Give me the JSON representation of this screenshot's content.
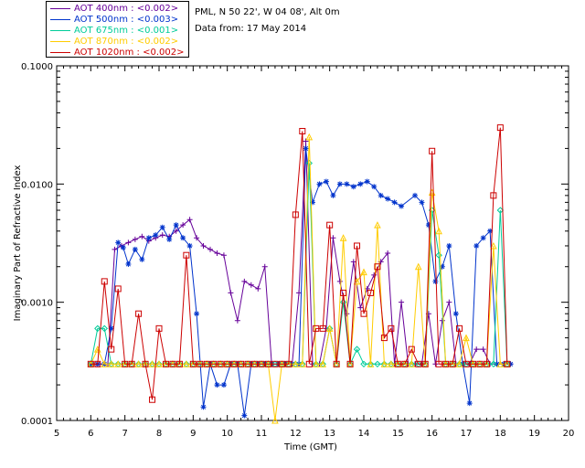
{
  "header": {
    "location": "PML, N 50 22', W 04 08', Alt 0m",
    "date_line": "Data from: 17 May 2014"
  },
  "chart_data": {
    "type": "line",
    "title": "",
    "xlabel": "Time (GMT)",
    "ylabel": "Imaginary Part of Refractive Index",
    "xlim": [
      5,
      20
    ],
    "ylim": [
      0.0001,
      0.1
    ],
    "yscale": "log",
    "xticks": [
      "5",
      "6",
      "7",
      "8",
      "9",
      "10",
      "11",
      "12",
      "13",
      "14",
      "15",
      "16",
      "17",
      "18",
      "19",
      "20"
    ],
    "yticks": [
      "0.0001",
      "0.0010",
      "0.0100",
      "0.1000"
    ],
    "series": [
      {
        "name": "AOT 400nm : <0.002>",
        "color": "#660099",
        "marker": "plus",
        "x": [
          6.0,
          6.2,
          6.5,
          6.7,
          6.9,
          7.1,
          7.3,
          7.5,
          7.7,
          7.9,
          8.1,
          8.3,
          8.5,
          8.7,
          8.9,
          9.1,
          9.3,
          9.5,
          9.7,
          9.9,
          10.1,
          10.3,
          10.5,
          10.7,
          10.9,
          11.1,
          11.3,
          11.5,
          11.7,
          11.9,
          12.1,
          12.3,
          12.5,
          12.7,
          12.9,
          13.1,
          13.3,
          13.5,
          13.7,
          13.9,
          14.1,
          14.3,
          14.5,
          14.7,
          14.9,
          15.1,
          15.3,
          15.5,
          15.7,
          15.9,
          16.1,
          16.3,
          16.5,
          16.7,
          16.9,
          17.1,
          17.3,
          17.5,
          17.7,
          17.9,
          18.1,
          18.3
        ],
        "y": [
          0.0003,
          0.0003,
          0.0003,
          0.0028,
          0.003,
          0.0032,
          0.0034,
          0.0036,
          0.0033,
          0.0035,
          0.0037,
          0.0036,
          0.004,
          0.0045,
          0.005,
          0.0035,
          0.003,
          0.0028,
          0.0026,
          0.0025,
          0.0012,
          0.0007,
          0.0015,
          0.0014,
          0.0013,
          0.002,
          0.0003,
          0.0003,
          0.0003,
          0.0003,
          0.0012,
          0.023,
          0.0003,
          0.0003,
          0.0006,
          0.0035,
          0.0015,
          0.0008,
          0.0022,
          0.0009,
          0.0013,
          0.0017,
          0.0022,
          0.0026,
          0.0003,
          0.001,
          0.0003,
          0.0003,
          0.0003,
          0.0008,
          0.0003,
          0.0007,
          0.001,
          0.0003,
          0.0003,
          0.0003,
          0.0004,
          0.0004,
          0.0003,
          0.0003,
          0.0003,
          0.0003
        ]
      },
      {
        "name": "AOT 500nm : <0.003>",
        "color": "#0033cc",
        "marker": "star",
        "x": [
          6.0,
          6.2,
          6.4,
          6.6,
          6.8,
          6.95,
          7.1,
          7.3,
          7.5,
          7.7,
          7.9,
          8.1,
          8.3,
          8.5,
          8.7,
          8.9,
          9.1,
          9.3,
          9.5,
          9.7,
          9.9,
          10.1,
          10.3,
          10.5,
          10.7,
          10.9,
          11.1,
          11.3,
          11.5,
          11.7,
          11.9,
          12.1,
          12.3,
          12.5,
          12.7,
          12.9,
          13.1,
          13.3,
          13.5,
          13.7,
          13.9,
          14.1,
          14.3,
          14.5,
          14.7,
          14.9,
          15.1,
          15.5,
          15.7,
          15.9,
          16.1,
          16.3,
          16.5,
          16.7,
          16.9,
          17.1,
          17.3,
          17.5,
          17.7,
          17.9,
          18.1,
          18.3
        ],
        "y": [
          0.0003,
          0.0003,
          0.0003,
          0.0006,
          0.0032,
          0.0029,
          0.0021,
          0.0028,
          0.0023,
          0.0035,
          0.0037,
          0.0043,
          0.0034,
          0.0045,
          0.0035,
          0.003,
          0.0008,
          0.00013,
          0.0003,
          0.0002,
          0.0002,
          0.0003,
          0.0003,
          0.00011,
          0.0003,
          0.0003,
          0.0003,
          0.0003,
          0.0003,
          0.0003,
          0.0003,
          0.0003,
          0.02,
          0.007,
          0.01,
          0.0105,
          0.008,
          0.01,
          0.01,
          0.0095,
          0.01,
          0.0105,
          0.0095,
          0.008,
          0.0075,
          0.007,
          0.0065,
          0.008,
          0.007,
          0.0045,
          0.0015,
          0.002,
          0.003,
          0.0008,
          0.0003,
          0.00014,
          0.003,
          0.0035,
          0.004,
          0.0003,
          0.0003,
          0.0003
        ]
      },
      {
        "name": "AOT 675nm : <0.001>",
        "color": "#00cc99",
        "marker": "diamond",
        "x": [
          6.0,
          6.2,
          6.4,
          6.6,
          6.8,
          7.0,
          7.2,
          7.4,
          7.6,
          7.8,
          8.0,
          8.2,
          8.4,
          8.6,
          8.8,
          9.0,
          9.2,
          9.4,
          9.6,
          9.8,
          10.0,
          10.2,
          10.4,
          10.6,
          10.8,
          11.0,
          11.2,
          11.4,
          11.6,
          11.8,
          12.0,
          12.2,
          12.4,
          12.6,
          12.8,
          13.0,
          13.2,
          13.4,
          13.6,
          13.8,
          14.0,
          14.2,
          14.4,
          14.6,
          14.8,
          15.0,
          15.2,
          15.4,
          15.6,
          15.8,
          16.0,
          16.2,
          16.4,
          16.6,
          16.8,
          17.0,
          17.2,
          17.4,
          17.6,
          17.8,
          18.0,
          18.2
        ],
        "y": [
          0.0003,
          0.0006,
          0.0006,
          0.0003,
          0.0003,
          0.0003,
          0.0003,
          0.0003,
          0.0003,
          0.0003,
          0.0003,
          0.0003,
          0.0003,
          0.0003,
          0.0003,
          0.0003,
          0.0003,
          0.0003,
          0.0003,
          0.0003,
          0.0003,
          0.0003,
          0.0003,
          0.0003,
          0.0003,
          0.0003,
          0.0003,
          0.0003,
          0.0003,
          0.0003,
          0.0003,
          0.0003,
          0.015,
          0.0003,
          0.0003,
          0.0006,
          0.0003,
          0.001,
          0.0003,
          0.0004,
          0.0003,
          0.0003,
          0.0003,
          0.0003,
          0.0003,
          0.0003,
          0.0003,
          0.0003,
          0.0003,
          0.0003,
          0.006,
          0.0025,
          0.0003,
          0.0003,
          0.0003,
          0.0003,
          0.0003,
          0.0003,
          0.0003,
          0.0003,
          0.006,
          0.0003
        ]
      },
      {
        "name": "AOT 870nm : <0.002>",
        "color": "#ffcc00",
        "marker": "triangle",
        "x": [
          6.0,
          6.2,
          6.4,
          6.6,
          6.8,
          7.0,
          7.2,
          7.4,
          7.6,
          7.8,
          8.0,
          8.2,
          8.4,
          8.6,
          8.8,
          9.0,
          9.2,
          9.4,
          9.6,
          9.8,
          10.0,
          10.2,
          10.4,
          10.6,
          10.8,
          11.0,
          11.2,
          11.4,
          11.6,
          11.8,
          12.0,
          12.2,
          12.4,
          12.6,
          12.8,
          13.0,
          13.2,
          13.4,
          13.6,
          13.8,
          14.0,
          14.2,
          14.4,
          14.6,
          14.8,
          15.0,
          15.2,
          15.4,
          15.6,
          15.8,
          16.0,
          16.2,
          16.4,
          16.6,
          16.8,
          17.0,
          17.2,
          17.4,
          17.6,
          17.8,
          18.0,
          18.2
        ],
        "y": [
          0.0003,
          0.0004,
          0.0003,
          0.0003,
          0.0003,
          0.0003,
          0.0003,
          0.0003,
          0.0003,
          0.0003,
          0.0003,
          0.0003,
          0.0003,
          0.0003,
          0.0003,
          0.0003,
          0.0003,
          0.0003,
          0.0003,
          0.0003,
          0.0003,
          0.0003,
          0.0003,
          0.0003,
          0.0003,
          0.0003,
          0.0003,
          0.0001,
          0.0003,
          0.0003,
          0.0003,
          0.0003,
          0.025,
          0.0003,
          0.0003,
          0.0006,
          0.0003,
          0.0035,
          0.0003,
          0.0015,
          0.0018,
          0.0003,
          0.0045,
          0.0003,
          0.0003,
          0.0003,
          0.0003,
          0.0003,
          0.002,
          0.0003,
          0.0085,
          0.004,
          0.0003,
          0.0003,
          0.0003,
          0.0005,
          0.0003,
          0.0003,
          0.0003,
          0.003,
          0.0003,
          0.0003
        ]
      },
      {
        "name": "AOT 1020nm : <0.002>",
        "color": "#cc0000",
        "marker": "square",
        "x": [
          6.0,
          6.2,
          6.4,
          6.6,
          6.8,
          7.0,
          7.2,
          7.4,
          7.6,
          7.8,
          8.0,
          8.2,
          8.4,
          8.6,
          8.8,
          9.0,
          9.2,
          9.4,
          9.6,
          9.8,
          10.0,
          10.2,
          10.4,
          10.6,
          10.8,
          11.0,
          11.2,
          11.4,
          11.6,
          11.8,
          12.0,
          12.2,
          12.4,
          12.6,
          12.8,
          13.0,
          13.2,
          13.4,
          13.6,
          13.8,
          14.0,
          14.2,
          14.4,
          14.6,
          14.8,
          15.0,
          15.2,
          15.4,
          15.6,
          15.8,
          16.0,
          16.2,
          16.4,
          16.6,
          16.8,
          17.0,
          17.2,
          17.4,
          17.6,
          17.8,
          18.0,
          18.2
        ],
        "y": [
          0.0003,
          0.0003,
          0.0015,
          0.0004,
          0.0013,
          0.0003,
          0.0003,
          0.0008,
          0.0003,
          0.00015,
          0.0006,
          0.0003,
          0.0003,
          0.0003,
          0.0025,
          0.0003,
          0.0003,
          0.0003,
          0.0003,
          0.0003,
          0.0003,
          0.0003,
          0.0003,
          0.0003,
          0.0003,
          0.0003,
          0.0003,
          0.0003,
          0.0003,
          0.0003,
          0.0055,
          0.028,
          0.0003,
          0.0006,
          0.0006,
          0.0045,
          0.0003,
          0.0012,
          0.0003,
          0.003,
          0.0008,
          0.0012,
          0.002,
          0.0005,
          0.0006,
          0.0003,
          0.0003,
          0.0004,
          0.0003,
          0.0003,
          0.019,
          0.0003,
          0.0003,
          0.0003,
          0.0006,
          0.0003,
          0.0003,
          0.0003,
          0.0003,
          0.008,
          0.03,
          0.0003
        ]
      }
    ]
  }
}
